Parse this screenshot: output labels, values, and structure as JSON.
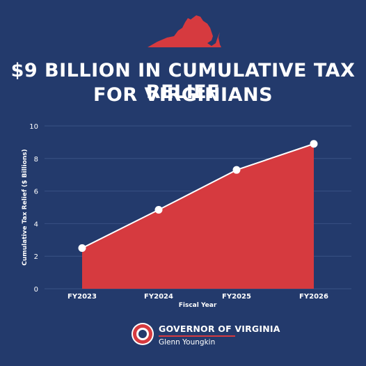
{
  "header": {
    "title_line_1": "$9 BILLION IN CUMULATIVE TAX RELIEF",
    "title_line_2": "FOR VIRGINIANS",
    "state_icon": "virginia-state-silhouette-icon"
  },
  "colors": {
    "background": "#233a6c",
    "accent_red": "#d63a3f",
    "line": "#ffffff",
    "grid": "#3a5283"
  },
  "chart_data": {
    "type": "area",
    "categories": [
      "FY2023",
      "FY2024",
      "FY2025",
      "FY2026"
    ],
    "series": [
      {
        "values": [
          2.5,
          4.85,
          7.3,
          8.9
        ]
      }
    ],
    "title": "$9 BILLION IN CUMULATIVE TAX RELIEF FOR VIRGINIANS",
    "xlabel": "Fiscal Year",
    "ylabel": "Cumulative Tax Relief ($ Billions)",
    "ylim": [
      0,
      10
    ],
    "yticks": [
      "0",
      "2",
      "4",
      "6",
      "8",
      "10"
    ],
    "grid": true,
    "legend": "none"
  },
  "footer": {
    "org": "GOVERNOR OF VIRGINIA",
    "name": "Glenn Youngkin",
    "seal_icon": "virginia-seal-icon"
  }
}
